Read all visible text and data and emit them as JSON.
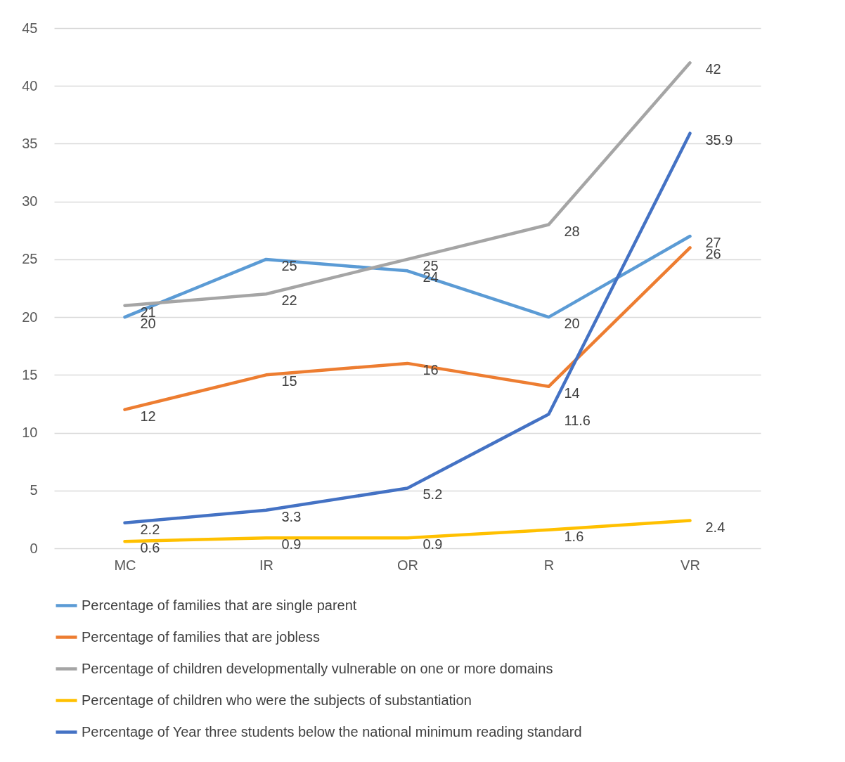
{
  "chart_data": {
    "type": "line",
    "categories": [
      "MC",
      "IR",
      "OR",
      "R",
      "VR"
    ],
    "series": [
      {
        "name": "Percentage of families that are single parent",
        "color": "#5b9bd5",
        "values": [
          20,
          25,
          24,
          20,
          27
        ]
      },
      {
        "name": "Percentage of families that are jobless",
        "color": "#ed7d31",
        "values": [
          12,
          15,
          16,
          14,
          26
        ]
      },
      {
        "name": "Percentage of children developmentally vulnerable on one or more domains",
        "color": "#a5a5a5",
        "values": [
          21,
          22,
          25,
          28,
          42
        ]
      },
      {
        "name": "Percentage of children who were the subjects of substantiation",
        "color": "#ffc000",
        "values": [
          0.6,
          0.9,
          0.9,
          1.6,
          2.4
        ]
      },
      {
        "name": "Percentage of Year three students below the national minimum reading standard",
        "color": "#4472c4",
        "values": [
          2.2,
          3.3,
          5.2,
          11.6,
          35.9
        ]
      }
    ],
    "ylim": [
      0,
      45
    ],
    "yticks": [
      0,
      5,
      10,
      15,
      20,
      25,
      30,
      35,
      40,
      45
    ],
    "grid": "y",
    "legend": "bottom",
    "data_labels": true,
    "marker": "none",
    "line_style": "solid"
  }
}
